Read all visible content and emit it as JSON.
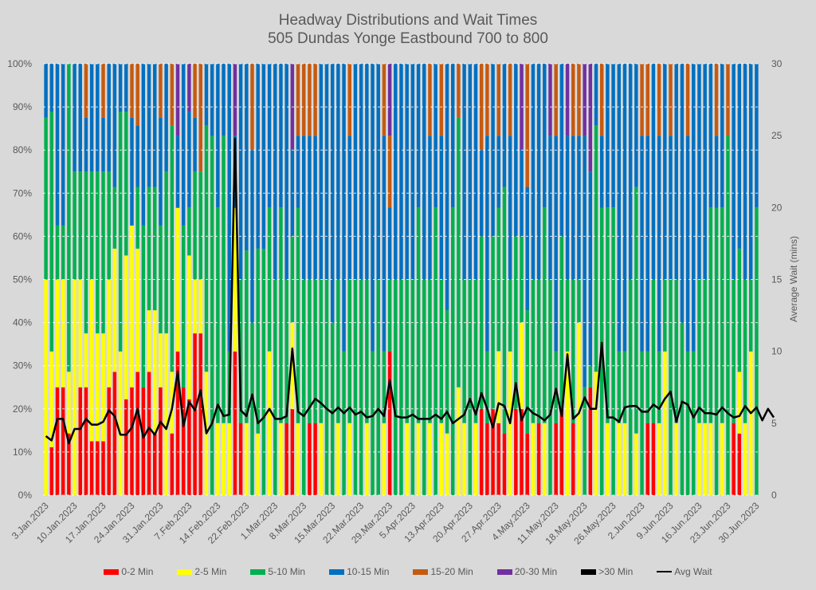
{
  "chart_data": {
    "type": "bar",
    "stacked": "percent",
    "title": "Headway Distributions and Wait Times",
    "subtitle": "505 Dundas  Yonge Eastbound 700 to 800",
    "ylabel": "",
    "y2label": "Average Wait (mins)",
    "ylim": [
      0,
      100
    ],
    "y2lim": [
      0,
      30
    ],
    "yticks": [
      "0%",
      "10%",
      "20%",
      "30%",
      "40%",
      "50%",
      "60%",
      "70%",
      "80%",
      "90%",
      "100%"
    ],
    "y2ticks": [
      "0",
      "5",
      "10",
      "15",
      "20",
      "25",
      "30"
    ],
    "xtick_labels": [
      "3.Jan.2023",
      "10.Jan.2023",
      "17.Jan.2023",
      "24.Jan.2023",
      "31.Jan.2023",
      "7.Feb.2023",
      "14.Feb.2023",
      "22.Feb.2023",
      "1.Mar.2023",
      "8.Mar.2023",
      "15.Mar.2023",
      "22.Mar.2023",
      "29.Mar.2023",
      "5.Apr.2023",
      "13.Apr.2023",
      "20.Apr.2023",
      "27.Apr.2023",
      "4.May.2023",
      "11.May.2023",
      "18.May.2023",
      "26.May.2023",
      "2.Jun.2023",
      "9.Jun.2023",
      "16.Jun.2023",
      "23.Jun.2023",
      "30.Jun.2023"
    ],
    "grid": true,
    "legend_position": "bottom",
    "series_names": [
      "0-2 Min",
      "2-5 Min",
      "5-10 Min",
      "10-15 Min",
      "15-20 Min",
      "20-30 Min",
      ">30 Min"
    ],
    "line_series_name": "Avg Wait",
    "colors": [
      "#ff0000",
      "#ffff00",
      "#00b050",
      "#0070c0",
      "#c55a11",
      "#7030a0",
      "#000000"
    ],
    "line_color": "#000000",
    "bars": [
      [
        0,
        50,
        37.5,
        12.5,
        0,
        0,
        0
      ],
      [
        11.1,
        22.2,
        55.6,
        11.1,
        0,
        0,
        0
      ],
      [
        25,
        25,
        12.5,
        37.5,
        0,
        0,
        0
      ],
      [
        25,
        25,
        12.5,
        37.5,
        0,
        0,
        0
      ],
      [
        14.3,
        14.3,
        71.4,
        0,
        0,
        0,
        0
      ],
      [
        0,
        50,
        25,
        25,
        0,
        0,
        0
      ],
      [
        25,
        25,
        25,
        25,
        0,
        0,
        0
      ],
      [
        25,
        12.5,
        37.5,
        12.5,
        12.5,
        0,
        0
      ],
      [
        12.5,
        37.5,
        25,
        25,
        0,
        0,
        0
      ],
      [
        12.5,
        25,
        37.5,
        25,
        0,
        0,
        0
      ],
      [
        12.5,
        25,
        37.5,
        12.5,
        12.5,
        0,
        0
      ],
      [
        25,
        25,
        25,
        25,
        0,
        0,
        0
      ],
      [
        28.6,
        28.6,
        14.3,
        28.6,
        0,
        0,
        0
      ],
      [
        0,
        33.3,
        55.6,
        11.1,
        0,
        0,
        0
      ],
      [
        22.2,
        33.3,
        33.3,
        11.1,
        0,
        0,
        0
      ],
      [
        25,
        37.5,
        0,
        25,
        12.5,
        0,
        0
      ],
      [
        28.6,
        28.6,
        14.3,
        14.3,
        14.3,
        0,
        0
      ],
      [
        25,
        0,
        37.5,
        37.5,
        0,
        0,
        0
      ],
      [
        28.6,
        14.3,
        28.6,
        28.6,
        0,
        0,
        0
      ],
      [
        14.3,
        28.6,
        28.6,
        28.6,
        0,
        0,
        0
      ],
      [
        25,
        12.5,
        25,
        25,
        12.5,
        0,
        0
      ],
      [
        0,
        37.5,
        37.5,
        25,
        0,
        0,
        0
      ],
      [
        14.3,
        14.3,
        57.1,
        0,
        14.3,
        0,
        0
      ],
      [
        33.3,
        33.3,
        0,
        16.7,
        0,
        16.7,
        0
      ],
      [
        25,
        0,
        37.5,
        37.5,
        0,
        0,
        0
      ],
      [
        22.2,
        33.3,
        11.1,
        22.2,
        0,
        11.1,
        0
      ],
      [
        37.5,
        12.5,
        25,
        12.5,
        12.5,
        0,
        0
      ],
      [
        37.5,
        12.5,
        25,
        0,
        25,
        0,
        0
      ],
      [
        0,
        28.6,
        57.1,
        14.3,
        0,
        0,
        0
      ],
      [
        0,
        0,
        83.3,
        16.7,
        0,
        0,
        0
      ],
      [
        0,
        16.7,
        50,
        33.3,
        0,
        0,
        0
      ],
      [
        0,
        16.7,
        66.7,
        16.7,
        0,
        0,
        0
      ],
      [
        0,
        16.7,
        16.7,
        66.7,
        0,
        0,
        0
      ],
      [
        33.3,
        33.3,
        0,
        16.7,
        0,
        16.7,
        0
      ],
      [
        16.7,
        0,
        33.3,
        50,
        0,
        0,
        0
      ],
      [
        0,
        16.7,
        40,
        43.3,
        0,
        0,
        0
      ],
      [
        0,
        0,
        40,
        40,
        20,
        0,
        0
      ],
      [
        0,
        14.3,
        42.9,
        42.9,
        0,
        0,
        0
      ],
      [
        0,
        0,
        57.1,
        42.9,
        0,
        0,
        0
      ],
      [
        0,
        33.3,
        33.3,
        33.3,
        0,
        0,
        0
      ],
      [
        0,
        0,
        50,
        50,
        0,
        0,
        0
      ],
      [
        0,
        16.7,
        50,
        33.3,
        0,
        0,
        0
      ],
      [
        16.7,
        0,
        33.3,
        50,
        0,
        0,
        0
      ],
      [
        20,
        20,
        20,
        20,
        0,
        20,
        0
      ],
      [
        0,
        16.7,
        50,
        16.7,
        16.7,
        0,
        0
      ],
      [
        0,
        0,
        50,
        33.3,
        16.7,
        0,
        0
      ],
      [
        16.7,
        0,
        33.3,
        33.3,
        16.7,
        0,
        0
      ],
      [
        16.7,
        0,
        33.3,
        33.3,
        16.7,
        0,
        0
      ],
      [
        0,
        16.7,
        33.3,
        50,
        0,
        0,
        0
      ],
      [
        0,
        0,
        50,
        50,
        0,
        0,
        0
      ],
      [
        0,
        0,
        40,
        60,
        0,
        0,
        0
      ],
      [
        0,
        16.7,
        33.3,
        50,
        0,
        0,
        0
      ],
      [
        0,
        0,
        33.3,
        66.7,
        0,
        0,
        0
      ],
      [
        0,
        16.7,
        33.3,
        33.3,
        16.7,
        0,
        0
      ],
      [
        0,
        0,
        50,
        50,
        0,
        0,
        0
      ],
      [
        0,
        0,
        50,
        50,
        0,
        0,
        0
      ],
      [
        0,
        16.7,
        33.3,
        50,
        0,
        0,
        0
      ],
      [
        0,
        0,
        33.3,
        66.7,
        0,
        0,
        0
      ],
      [
        0,
        0,
        50,
        50,
        0,
        0,
        0
      ],
      [
        0,
        16.7,
        16.7,
        50,
        16.7,
        0,
        0
      ],
      [
        33.3,
        0,
        16.7,
        16.7,
        16.7,
        16.7,
        0
      ],
      [
        0,
        0,
        50,
        50,
        0,
        0,
        0
      ],
      [
        0,
        0,
        50,
        50,
        0,
        0,
        0
      ],
      [
        0,
        16.7,
        33.3,
        50,
        0,
        0,
        0
      ],
      [
        0,
        0,
        50,
        50,
        0,
        0,
        0
      ],
      [
        0,
        16.7,
        50,
        33.3,
        0,
        0,
        0
      ],
      [
        0,
        0,
        50,
        50,
        0,
        0,
        0
      ],
      [
        0,
        16.7,
        33.3,
        33.3,
        16.7,
        0,
        0
      ],
      [
        0,
        0,
        66.7,
        33.3,
        0,
        0,
        0
      ],
      [
        0,
        16.7,
        33.3,
        33.3,
        16.7,
        0,
        0
      ],
      [
        0,
        14.3,
        28.6,
        57.1,
        0,
        0,
        0
      ],
      [
        0,
        0,
        66.7,
        33.3,
        0,
        0,
        0
      ],
      [
        0,
        25,
        62.5,
        0,
        12.5,
        0,
        0
      ],
      [
        0,
        16.7,
        33.3,
        50,
        0,
        0,
        0
      ],
      [
        0,
        0,
        50,
        50,
        0,
        0,
        0
      ],
      [
        0,
        16.7,
        33.3,
        50,
        0,
        0,
        0
      ],
      [
        20,
        0,
        40,
        20,
        20,
        0,
        0
      ],
      [
        16.7,
        0,
        16.7,
        50,
        16.7,
        0,
        0
      ],
      [
        20,
        0,
        40,
        40,
        0,
        0,
        0
      ],
      [
        16.7,
        16.7,
        33.3,
        16.7,
        16.7,
        0,
        0
      ],
      [
        14.3,
        0,
        57.1,
        28.6,
        0,
        0,
        0
      ],
      [
        0,
        33.3,
        16.7,
        33.3,
        16.7,
        0,
        0
      ],
      [
        20,
        0,
        40,
        40,
        0,
        0,
        0
      ],
      [
        20,
        20,
        20,
        20,
        0,
        20,
        0
      ],
      [
        14.3,
        0,
        28.6,
        28.6,
        28.6,
        0,
        0
      ],
      [
        0,
        16.7,
        33.3,
        50,
        0,
        0,
        0
      ],
      [
        16.7,
        0,
        33.3,
        50,
        0,
        0,
        0
      ],
      [
        0,
        16.7,
        50,
        33.3,
        0,
        0,
        0
      ],
      [
        0,
        0,
        50,
        33.3,
        0,
        16.7,
        0
      ],
      [
        16.7,
        0,
        16.7,
        50,
        16.7,
        0,
        0
      ],
      [
        20,
        0,
        40,
        40,
        0,
        0,
        0
      ],
      [
        0,
        33.3,
        16.7,
        33.3,
        0,
        16.7,
        0
      ],
      [
        16.7,
        0,
        33.3,
        33.3,
        16.7,
        0,
        0
      ],
      [
        0,
        40,
        10,
        33.3,
        16.7,
        0,
        0
      ],
      [
        0,
        0,
        25,
        58.3,
        0,
        16.7,
        0
      ],
      [
        25,
        0,
        5,
        45,
        0,
        25,
        0
      ],
      [
        0,
        28.6,
        57.1,
        14.3,
        0,
        0,
        0
      ],
      [
        0,
        0,
        66.7,
        16.7,
        16.7,
        0,
        0
      ],
      [
        0,
        16.7,
        50,
        33.3,
        0,
        0,
        0
      ],
      [
        0,
        0,
        66.7,
        33.3,
        0,
        0,
        0
      ],
      [
        0,
        16.7,
        16.7,
        66.7,
        0,
        0,
        0
      ],
      [
        0,
        16.7,
        16.7,
        66.7,
        0,
        0,
        0
      ],
      [
        0,
        0,
        50,
        50,
        0,
        0,
        0
      ],
      [
        0,
        14.3,
        57.1,
        28.6,
        0,
        0,
        0
      ],
      [
        0,
        0,
        33.3,
        50,
        16.7,
        0,
        0
      ],
      [
        16.7,
        0,
        16.7,
        50,
        16.7,
        0,
        0
      ],
      [
        16.7,
        0,
        33.3,
        50,
        0,
        0,
        0
      ],
      [
        0,
        16.7,
        16.7,
        50,
        16.7,
        0,
        0
      ],
      [
        0,
        33.3,
        16.7,
        50,
        0,
        0,
        0
      ],
      [
        0,
        0,
        50,
        33.3,
        16.7,
        0,
        0
      ],
      [
        0,
        16.7,
        33.3,
        50,
        0,
        0,
        0
      ],
      [
        0,
        0,
        40,
        60,
        0,
        0,
        0
      ],
      [
        0,
        0,
        33.3,
        50,
        16.7,
        0,
        0
      ],
      [
        0,
        0,
        33.3,
        66.7,
        0,
        0,
        0
      ],
      [
        0,
        16.7,
        33.3,
        50,
        0,
        0,
        0
      ],
      [
        0,
        16.7,
        33.3,
        50,
        0,
        0,
        0
      ],
      [
        0,
        16.7,
        50,
        33.3,
        0,
        0,
        0
      ],
      [
        0,
        0,
        66.7,
        16.7,
        16.7,
        0,
        0
      ],
      [
        0,
        16.7,
        50,
        33.3,
        0,
        0,
        0
      ],
      [
        0,
        0,
        83.3,
        0,
        16.7,
        0,
        0
      ],
      [
        16.7,
        0,
        33.3,
        50,
        0,
        0,
        0
      ],
      [
        14.3,
        14.3,
        28.6,
        42.9,
        0,
        0,
        0
      ],
      [
        0,
        16.7,
        33.3,
        50,
        0,
        0,
        0
      ],
      [
        0,
        33.3,
        16.7,
        50,
        0,
        0,
        0
      ],
      [
        0,
        0,
        66.7,
        33.3,
        0,
        0,
        0
      ]
    ],
    "avg_wait": [
      4.1,
      3.8,
      5.3,
      5.3,
      3.6,
      4.6,
      4.6,
      5.3,
      4.9,
      4.9,
      5.1,
      5.9,
      5.5,
      4.2,
      4.2,
      4.7,
      6.0,
      4.0,
      4.7,
      4.2,
      5.1,
      4.6,
      6.0,
      8.6,
      4.8,
      6.5,
      5.9,
      7.3,
      4.3,
      5.0,
      6.3,
      5.5,
      5.6,
      24.8,
      5.9,
      5.5,
      7.0,
      5.0,
      5.4,
      6.0,
      5.3,
      5.3,
      5.5,
      10.2,
      5.8,
      5.5,
      6.1,
      6.7,
      6.4,
      6.0,
      5.7,
      6.1,
      5.7,
      6.1,
      5.6,
      5.8,
      5.4,
      5.5,
      6.0,
      5.5,
      8.0,
      5.5,
      5.4,
      5.4,
      5.6,
      5.3,
      5.3,
      5.3,
      5.6,
      5.3,
      5.8,
      5.0,
      5.3,
      5.6,
      6.7,
      5.6,
      7.1,
      6.0,
      4.7,
      6.4,
      6.2,
      5.0,
      7.8,
      5.2,
      6.1,
      5.7,
      5.5,
      5.2,
      5.6,
      7.4,
      5.5,
      9.8,
      5.3,
      5.7,
      6.8,
      6.0,
      6.0,
      10.6,
      5.4,
      5.4,
      5.1,
      6.1,
      6.2,
      6.2,
      5.8,
      5.8,
      6.3,
      6.0,
      6.7,
      7.2,
      5.1,
      6.5,
      6.3,
      5.4,
      6.1,
      5.7,
      5.7,
      5.6,
      6.1,
      5.7,
      5.4,
      5.5,
      6.2,
      5.7,
      6.1,
      5.2,
      6.0,
      5.4
    ]
  }
}
